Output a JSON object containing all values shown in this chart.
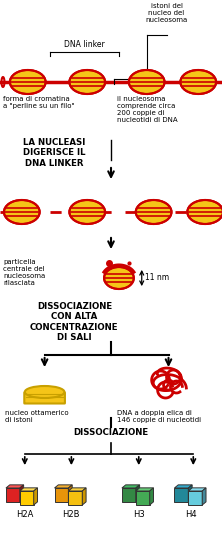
{
  "bg_color": "#ffffff",
  "red": "#cc0000",
  "yellow": "#f5c518",
  "dark_yellow": "#c8a000",
  "orange_yellow": "#e8a800",
  "section_labels": {
    "dna_linker": "DNA linker",
    "istoni": "istoni del\nnucleo del\nnucleosoma",
    "forma": "forma di cromatina\na \"perline su un filo\"",
    "nucleosoma": "il nucleosoma\ncomprende circa\n200 coppie di\nnucleotidi di DNA",
    "nucleasi": "LA NUCLEASI\nDIGERISCE IL\nDNA LINKER",
    "particella": "particella\ncentrale del\nnucleosoma\nrilasciata",
    "nm11": "11 nm",
    "dissociazione1": "DISSOCIAZIONE\nCON ALTA\nCONCENTRAZIONE\nDI SALI",
    "nucleo": "nucleo ottamerico\ndi istoni",
    "dna_doppia": "DNA a doppia elica di\n146 coppie di nucleotidi",
    "dissociazione2": "DISSOCIAZIONE",
    "h2a": "H2A",
    "h2b": "H2B",
    "h3": "H3",
    "h4": "H4"
  }
}
